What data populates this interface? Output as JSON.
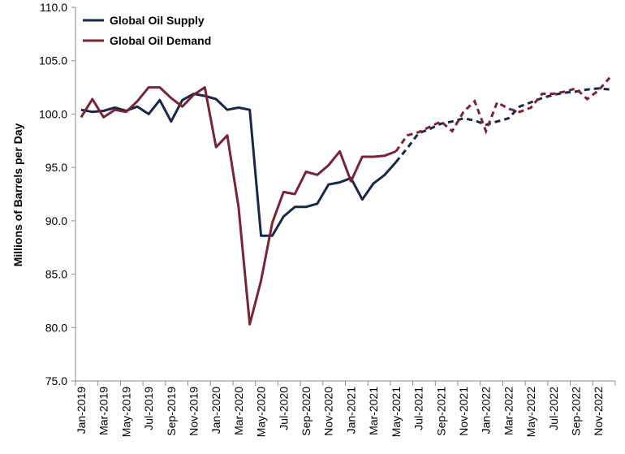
{
  "chart_data": {
    "type": "line",
    "title": "",
    "xlabel": "",
    "ylabel": "Millions of Barrels per Day",
    "ylim": [
      75.0,
      110.0
    ],
    "yticks": [
      "75.0",
      "80.0",
      "85.0",
      "90.0",
      "95.0",
      "100.0",
      "105.0",
      "110.0"
    ],
    "ytick_values": [
      75,
      80,
      85,
      90,
      95,
      100,
      105,
      110
    ],
    "x_tick_labels": [
      "Jan-2019",
      "Mar-2019",
      "May-2019",
      "Jul-2019",
      "Sep-2019",
      "Nov-2019",
      "Jan-2020",
      "Mar-2020",
      "May-2020",
      "Jul-2020",
      "Sep-2020",
      "Nov-2020",
      "Jan-2021",
      "Mar-2021",
      "May-2021",
      "Jul-2021",
      "Sep-2021",
      "Nov-2021",
      "Jan-2022",
      "Mar-2022",
      "May-2022",
      "Jul-2022",
      "Sep-2022",
      "Nov-2022"
    ],
    "x_start": "Jan-2019",
    "x_end": "Dec-2022",
    "forecast_start": "May-2021",
    "legend_position": "top-left",
    "grid": false,
    "series": [
      {
        "name": "Global Oil Supply",
        "color": "#17284a",
        "values": [
          100.4,
          100.2,
          100.3,
          100.6,
          100.3,
          100.7,
          100.0,
          101.3,
          99.3,
          101.3,
          101.9,
          101.7,
          101.4,
          100.4,
          100.6,
          100.4,
          88.6,
          88.6,
          90.4,
          91.3,
          91.3,
          91.6,
          93.4,
          93.6,
          94.0,
          92.0,
          93.5,
          94.3,
          95.5,
          96.8,
          98.2,
          98.6,
          99.1,
          99.3,
          99.6,
          99.4,
          99.0,
          99.3,
          99.6,
          100.7,
          101.1,
          101.5,
          101.8,
          102.0,
          102.1,
          102.3,
          102.4,
          102.3
        ]
      },
      {
        "name": "Global Oil Demand",
        "color": "#7b2335",
        "values": [
          99.7,
          101.4,
          99.7,
          100.4,
          100.2,
          101.2,
          102.5,
          102.5,
          101.5,
          100.7,
          101.8,
          102.5,
          96.9,
          98.0,
          91.3,
          80.3,
          84.4,
          89.8,
          92.7,
          92.5,
          94.6,
          94.3,
          95.2,
          96.5,
          93.7,
          96.0,
          96.0,
          96.1,
          96.5,
          98.0,
          98.3,
          98.8,
          99.3,
          98.4,
          100.2,
          101.2,
          98.4,
          101.1,
          100.5,
          100.2,
          100.6,
          101.9,
          101.9,
          102.1,
          102.4,
          101.4,
          102.2,
          103.4
        ]
      }
    ]
  }
}
